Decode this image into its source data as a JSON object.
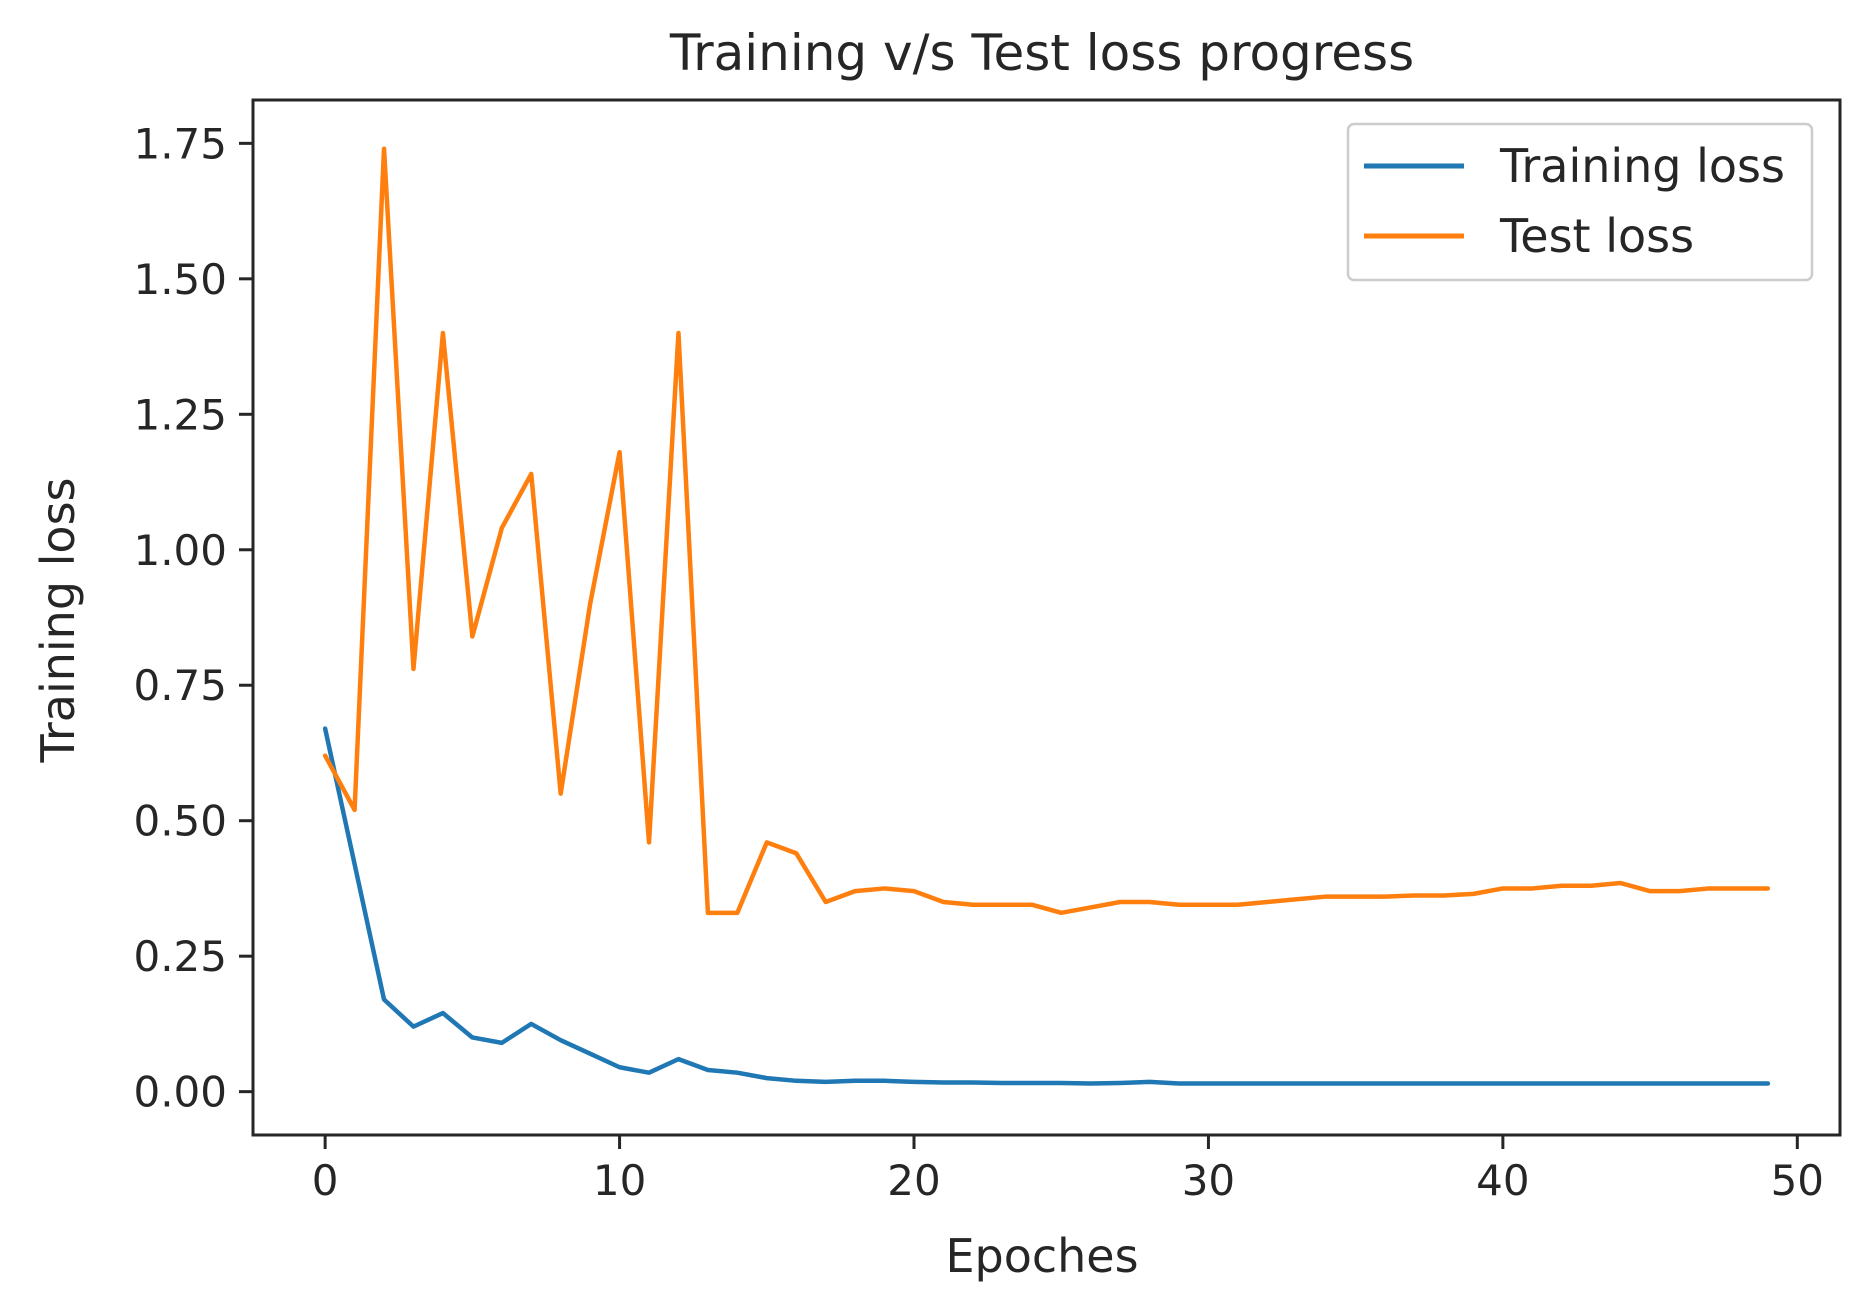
{
  "chart_data": {
    "type": "line",
    "title": "Training v/s Test loss progress",
    "xlabel": "Epoches",
    "ylabel": "Training loss",
    "xlim": [
      -2.45,
      51.45
    ],
    "ylim": [
      -0.08,
      1.83
    ],
    "xticks": [
      0,
      10,
      20,
      30,
      40,
      50
    ],
    "xtick_labels": [
      "0",
      "10",
      "20",
      "30",
      "40",
      "50"
    ],
    "yticks": [
      0.0,
      0.25,
      0.5,
      0.75,
      1.0,
      1.25,
      1.5,
      1.75
    ],
    "ytick_labels": [
      "0.00",
      "0.25",
      "0.50",
      "0.75",
      "1.00",
      "1.25",
      "1.50",
      "1.75"
    ],
    "grid": false,
    "legend_position": "top-right",
    "x": [
      0,
      1,
      2,
      3,
      4,
      5,
      6,
      7,
      8,
      9,
      10,
      11,
      12,
      13,
      14,
      15,
      16,
      17,
      18,
      19,
      20,
      21,
      22,
      23,
      24,
      25,
      26,
      27,
      28,
      29,
      30,
      31,
      32,
      33,
      34,
      35,
      36,
      37,
      38,
      39,
      40,
      41,
      42,
      43,
      44,
      45,
      46,
      47,
      48,
      49
    ],
    "series": [
      {
        "name": "Training loss",
        "color": "#1f77b4",
        "values": [
          0.67,
          0.42,
          0.17,
          0.12,
          0.145,
          0.1,
          0.09,
          0.125,
          0.095,
          0.07,
          0.045,
          0.035,
          0.06,
          0.04,
          0.035,
          0.025,
          0.02,
          0.018,
          0.02,
          0.02,
          0.018,
          0.017,
          0.017,
          0.016,
          0.016,
          0.016,
          0.015,
          0.016,
          0.018,
          0.015,
          0.015,
          0.015,
          0.015,
          0.015,
          0.015,
          0.015,
          0.015,
          0.015,
          0.015,
          0.015,
          0.015,
          0.015,
          0.015,
          0.015,
          0.015,
          0.015,
          0.015,
          0.015,
          0.015,
          0.015
        ]
      },
      {
        "name": "Test loss",
        "color": "#ff7f0e",
        "values": [
          0.62,
          0.52,
          1.74,
          0.78,
          1.4,
          0.84,
          1.04,
          1.14,
          0.55,
          0.9,
          1.18,
          0.46,
          1.4,
          0.33,
          0.33,
          0.46,
          0.44,
          0.35,
          0.37,
          0.375,
          0.37,
          0.35,
          0.345,
          0.345,
          0.345,
          0.33,
          0.34,
          0.35,
          0.35,
          0.345,
          0.345,
          0.345,
          0.35,
          0.355,
          0.36,
          0.36,
          0.36,
          0.362,
          0.362,
          0.365,
          0.375,
          0.375,
          0.38,
          0.38,
          0.385,
          0.37,
          0.37,
          0.375,
          0.375,
          0.375
        ]
      }
    ]
  }
}
